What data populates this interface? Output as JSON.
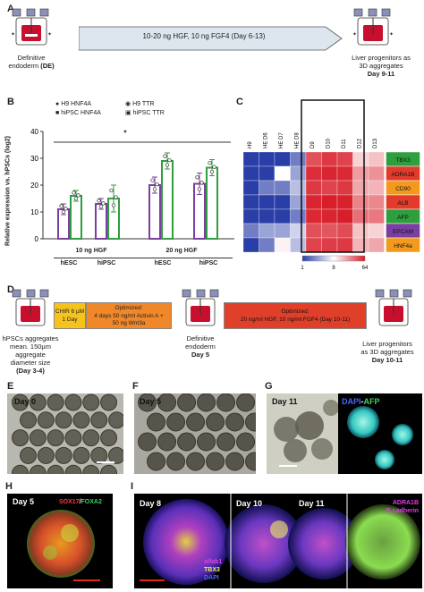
{
  "panels": {
    "a": "A",
    "b": "B",
    "c": "C",
    "d": "D",
    "e": "E",
    "f": "F",
    "g": "G",
    "h": "H",
    "i": "I"
  },
  "A": {
    "left_caption": "Definitive",
    "left_caption2": "endoderm",
    "left_caption3": "(DE)",
    "arrow_text": "10-20 ng HGF, 10 ng FGF4 (Day 6-13)",
    "right_caption": "Liver progenitors as",
    "right_caption2": "3D aggregates",
    "right_caption3": "Day 9-11"
  },
  "B": {
    "legend": [
      "H9 HNF4A",
      "H9 TTR",
      "hiPSC HNF4A",
      "hiPSC TTR"
    ],
    "sig": "*",
    "group_labels": [
      "10 ng HGF",
      "20 ng HGF"
    ],
    "cell_labels": [
      "hESC",
      "hiPSC",
      "hESC",
      "hiPSC"
    ]
  },
  "C": {
    "columns": [
      "H9",
      "HE D6",
      "HE D7",
      "HE D8",
      "D9",
      "D10",
      "D11",
      "D12",
      "D13"
    ],
    "genes": [
      "TBX3",
      "ADRA1B",
      "CD90",
      "ALB",
      "AFP",
      "EPCAM",
      "HNF4a"
    ],
    "gene_colors": [
      "#2e9e3e",
      "#e23b2b",
      "#f39a1e",
      "#e23b2b",
      "#2e9e3e",
      "#7a3fa0",
      "#f39a1e"
    ],
    "scale_labels": [
      "1",
      "8",
      "64"
    ]
  },
  "D": {
    "left_caption": "hPSCs aggregates",
    "left_caption2": "mean. 150µm",
    "left_caption3": "aggregate",
    "left_caption4": "diameter size",
    "left_caption5": "(Day 3-4)",
    "chir_line1": "CHIR 6 µM",
    "chir_line2": "1 Day",
    "opt1_line1": "Optimized:",
    "opt1_line2": "4 days 50 ng/ml Activin A +",
    "opt1_line3": "50 ng Wnt3a",
    "mid_caption": "Definitive",
    "mid_caption2": "endoderm",
    "mid_caption3": "Day 5",
    "opt2_line1": "Optimized:",
    "opt2_line2": "20 ng/ml HGF, 10 ng/ml FGF4 (Day 10-11)",
    "right_caption": "Liver progenitors",
    "right_caption2": "as 3D aggregates",
    "right_caption3": "Day 10-11"
  },
  "E": {
    "day": "Day 0"
  },
  "F": {
    "day": "Day 5"
  },
  "G": {
    "day": "Day 11",
    "stain1": "DAPI",
    "stain2": "AFP"
  },
  "H": {
    "day": "Day 5",
    "stain1": "SOX17",
    "stain2": "FOXA2"
  },
  "I": {
    "days": [
      "Day 8",
      "Day 10",
      "Day 11"
    ],
    "stain_a": "alfab1",
    "stain_b": "TBX3",
    "stain_c": "DAPI",
    "stain_d": "ADRA1B",
    "stain_e": "E-cadherin"
  },
  "chart_data": {
    "type": "bar",
    "ylabel": "Relative expression vs. hPSCs (log2)",
    "ylim": [
      0,
      40
    ],
    "yticks": [
      0,
      10,
      20,
      30,
      40
    ],
    "categories": [
      "10 ng HGF hESC",
      "10 ng HGF hiPSC",
      "20 ng HGF hESC",
      "20 ng HGF hiPSC"
    ],
    "series": [
      {
        "name": "H9 HNF4A / hiPSC HNF4A",
        "color": "#7b3fa0",
        "values": [
          11,
          13,
          20,
          20.5
        ],
        "errors": [
          2,
          2,
          3,
          4
        ]
      },
      {
        "name": "H9 TTR / hiPSC TTR",
        "color": "#2e9e3e",
        "values": [
          16,
          15,
          29,
          26.5
        ],
        "errors": [
          2,
          5,
          3,
          3
        ]
      }
    ]
  },
  "heatmap_data": {
    "type": "heatmap",
    "rows": [
      "TBX3",
      "ADRA1B",
      "CD90",
      "ALB",
      "AFP",
      "EPCAM",
      "HNF4a"
    ],
    "cols": [
      "H9",
      "HE D6",
      "HE D7",
      "HE D8",
      "D9",
      "D10",
      "D11",
      "D12",
      "D13"
    ],
    "scale": [
      1,
      64
    ],
    "values": [
      [
        1,
        1,
        1,
        2,
        40,
        50,
        45,
        12,
        14
      ],
      [
        1,
        1,
        8,
        3,
        55,
        60,
        58,
        20,
        22
      ],
      [
        1,
        2,
        2,
        4,
        50,
        45,
        50,
        18,
        16
      ],
      [
        1,
        1,
        1,
        3,
        60,
        64,
        62,
        25,
        24
      ],
      [
        1,
        1,
        1,
        2,
        58,
        60,
        64,
        30,
        28
      ],
      [
        2,
        3,
        3,
        5,
        40,
        38,
        42,
        14,
        12
      ],
      [
        1,
        2,
        9,
        4,
        45,
        48,
        50,
        16,
        18
      ]
    ]
  }
}
